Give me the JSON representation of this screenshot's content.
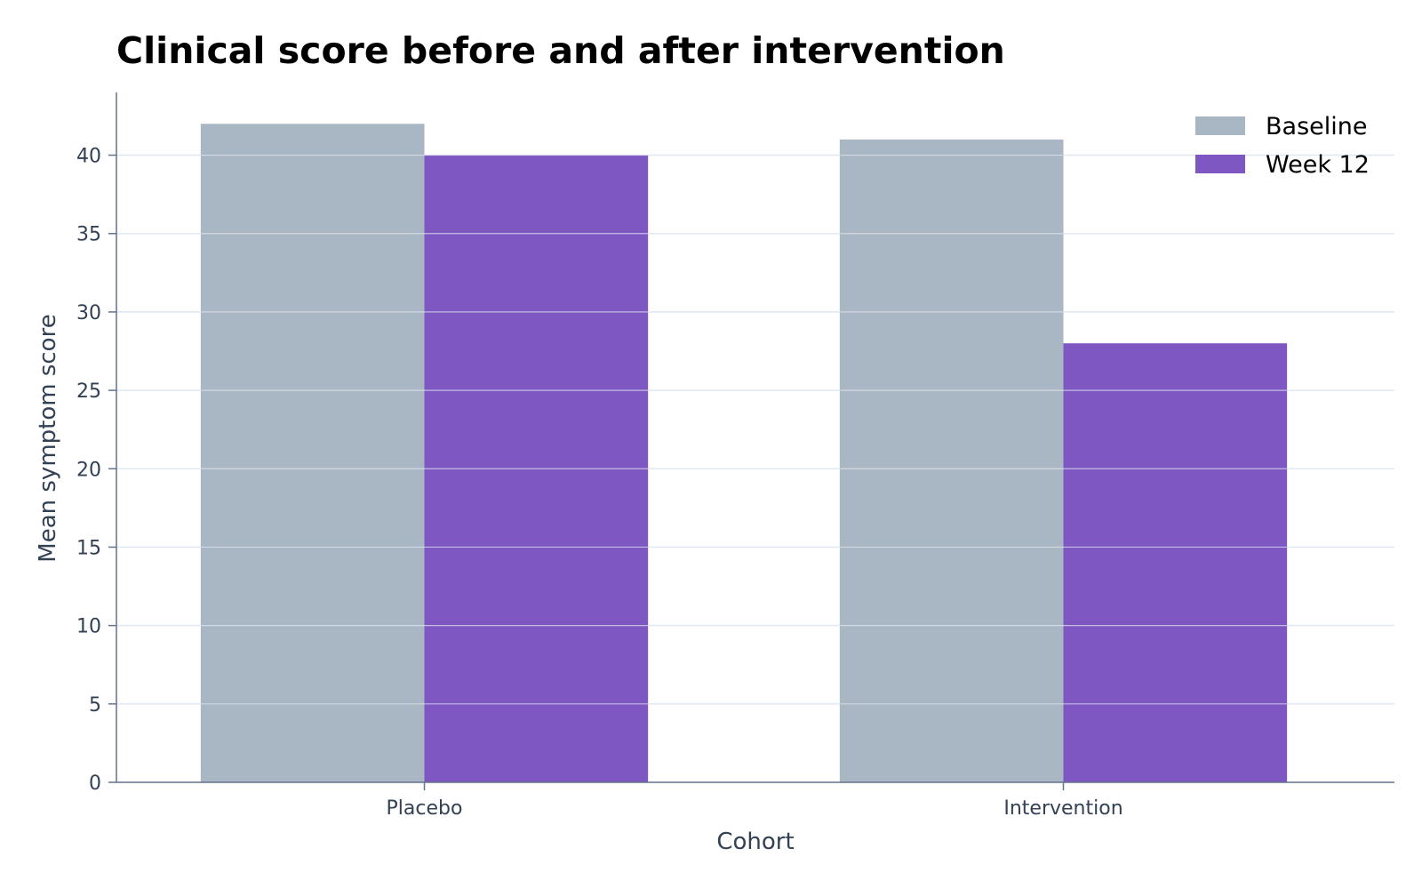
{
  "chart_data": {
    "type": "bar",
    "title": "Clinical score before and after intervention",
    "xlabel": "Cohort",
    "ylabel": "Mean symptom score",
    "categories": [
      "Placebo",
      "Intervention"
    ],
    "series": [
      {
        "name": "Baseline",
        "values": [
          42,
          41
        ],
        "color": "#a9b6c3"
      },
      {
        "name": "Week 12",
        "values": [
          40,
          28
        ],
        "color": "#7e57c2"
      }
    ],
    "ylim": [
      0,
      44
    ],
    "yticks": [
      "0",
      "5",
      "10",
      "15",
      "20",
      "25",
      "30",
      "35",
      "40"
    ],
    "grid": true,
    "grid_color": "#e2e8f0",
    "axis_color": "#64748b",
    "legend_position": "top-right"
  }
}
